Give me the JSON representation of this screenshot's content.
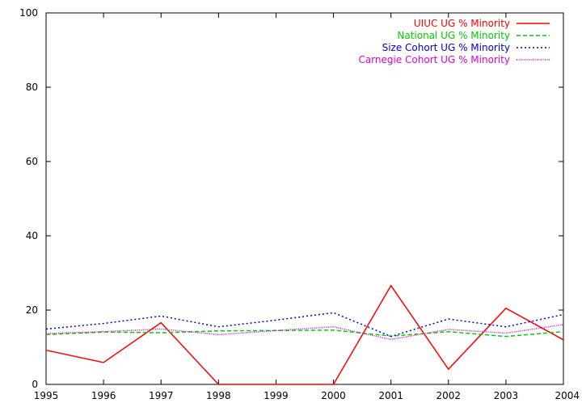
{
  "chart_data": {
    "type": "line",
    "x": [
      1995,
      1996,
      1997,
      1998,
      1999,
      2000,
      2001,
      2002,
      2003,
      2004
    ],
    "xlim": [
      1995,
      2004
    ],
    "ylim": [
      0,
      100
    ],
    "x_ticks": [
      "1995",
      "1996",
      "1997",
      "1998",
      "1999",
      "2000",
      "2001",
      "2002",
      "2003",
      "2004"
    ],
    "y_ticks": [
      "0",
      "20",
      "40",
      "60",
      "80",
      "100"
    ],
    "grid": false,
    "legend_placement": "top-right",
    "series": [
      {
        "name": "UIUC UG % Minority",
        "color": "#ff0000",
        "dash": "solid",
        "values": [
          9.2,
          5.9,
          16.6,
          0,
          0,
          0,
          26.6,
          4.1,
          20.5,
          12.0
        ]
      },
      {
        "name": "National UG % Minority",
        "color": "#00cc00",
        "dash": "dashed",
        "values": [
          13.4,
          14.1,
          13.9,
          14.4,
          14.5,
          14.6,
          13.0,
          14.2,
          12.9,
          14.2
        ]
      },
      {
        "name": "Size Cohort UG % Minority",
        "color": "#0000cc",
        "dash": "dotted",
        "values": [
          14.9,
          16.4,
          18.4,
          15.5,
          17.3,
          19.3,
          12.9,
          17.6,
          15.5,
          18.8
        ]
      },
      {
        "name": "Carnegie Cohort UG % Minority",
        "color": "#dd00dd",
        "dash": "fine-dotted",
        "values": [
          13.7,
          14.2,
          14.9,
          13.4,
          14.5,
          15.5,
          12.1,
          14.8,
          13.8,
          16.1
        ]
      }
    ]
  }
}
